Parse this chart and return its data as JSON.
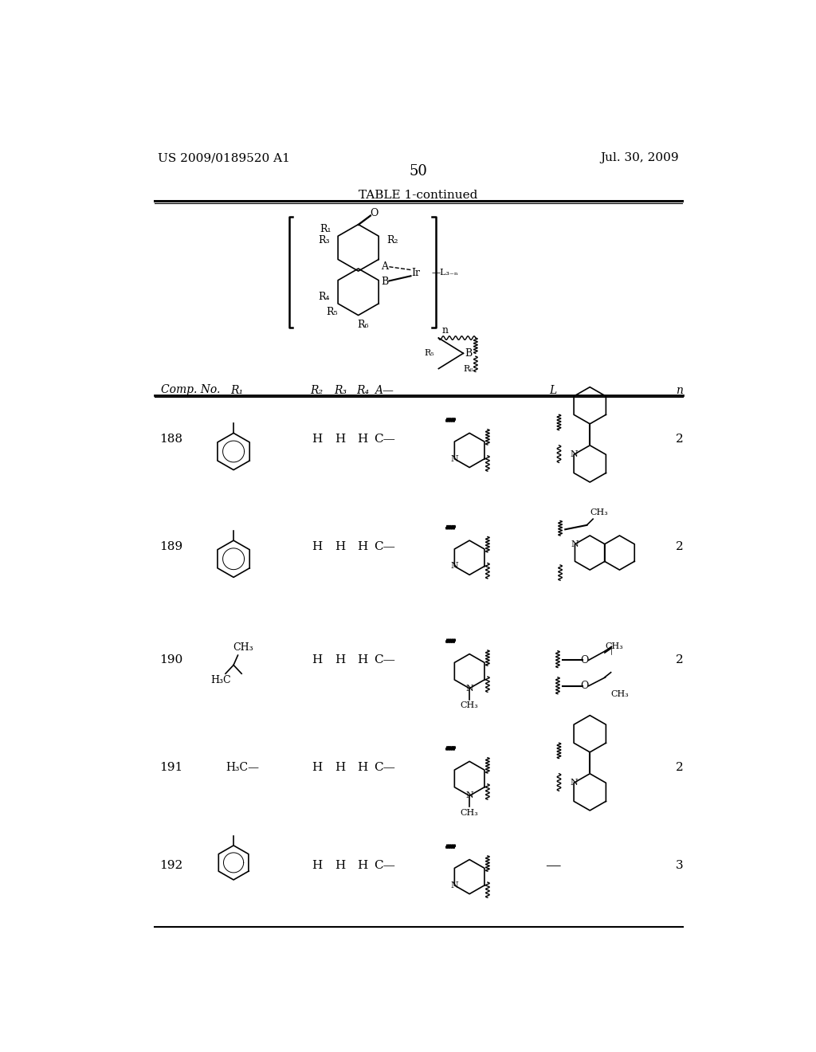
{
  "page_number": "50",
  "patent_number": "US 2009/0189520 A1",
  "patent_date": "Jul. 30, 2009",
  "table_title": "TABLE 1-continued",
  "background_color": "#ffffff",
  "text_color": "#000000",
  "rows": [
    {
      "comp": "188",
      "r2": "H",
      "r3": "H",
      "r4": "H",
      "a": "C—",
      "n": "2"
    },
    {
      "comp": "189",
      "r2": "H",
      "r3": "H",
      "r4": "H",
      "a": "C—",
      "n": "2"
    },
    {
      "comp": "190",
      "r2": "H",
      "r3": "H",
      "r4": "H",
      "a": "C—",
      "n": "2"
    },
    {
      "comp": "191",
      "r2": "H",
      "r3": "H",
      "r4": "H",
      "a": "C—",
      "n": "2"
    },
    {
      "comp": "192",
      "r2": "H",
      "r3": "H",
      "r4": "H",
      "a": "C—",
      "n": "3"
    }
  ]
}
